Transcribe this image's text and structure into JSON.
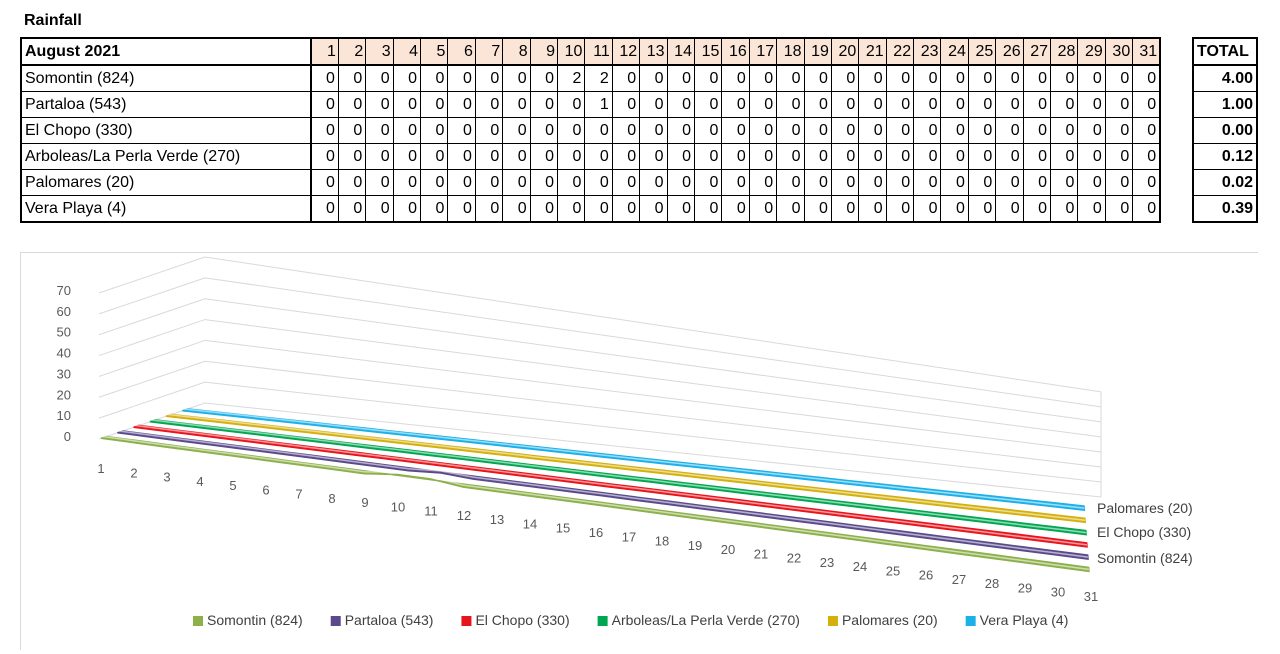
{
  "title": "Rainfall",
  "table": {
    "month_label": "August 2021",
    "total_label": "TOTAL",
    "days": [
      "1",
      "2",
      "3",
      "4",
      "5",
      "6",
      "7",
      "8",
      "9",
      "10",
      "11",
      "12",
      "13",
      "14",
      "15",
      "16",
      "17",
      "18",
      "19",
      "20",
      "21",
      "22",
      "23",
      "24",
      "25",
      "26",
      "27",
      "28",
      "29",
      "30",
      "31"
    ],
    "rows": [
      {
        "station": "Somontin (824)",
        "values": [
          0,
          0,
          0,
          0,
          0,
          0,
          0,
          0,
          0,
          2,
          2,
          0,
          0,
          0,
          0,
          0,
          0,
          0,
          0,
          0,
          0,
          0,
          0,
          0,
          0,
          0,
          0,
          0,
          0,
          0,
          0
        ],
        "total": "4.00"
      },
      {
        "station": "Partaloa (543)",
        "values": [
          0,
          0,
          0,
          0,
          0,
          0,
          0,
          0,
          0,
          0,
          1,
          0,
          0,
          0,
          0,
          0,
          0,
          0,
          0,
          0,
          0,
          0,
          0,
          0,
          0,
          0,
          0,
          0,
          0,
          0,
          0
        ],
        "total": "1.00"
      },
      {
        "station": "El Chopo (330)",
        "values": [
          0,
          0,
          0,
          0,
          0,
          0,
          0,
          0,
          0,
          0,
          0,
          0,
          0,
          0,
          0,
          0,
          0,
          0,
          0,
          0,
          0,
          0,
          0,
          0,
          0,
          0,
          0,
          0,
          0,
          0,
          0
        ],
        "total": "0.00"
      },
      {
        "station": "Arboleas/La Perla Verde (270)",
        "values": [
          0,
          0,
          0,
          0,
          0,
          0,
          0,
          0,
          0,
          0,
          0,
          0,
          0,
          0,
          0,
          0,
          0,
          0,
          0,
          0,
          0,
          0,
          0,
          0,
          0,
          0,
          0,
          0,
          0,
          0,
          0
        ],
        "total": "0.12"
      },
      {
        "station": "Palomares (20)",
        "values": [
          0,
          0,
          0,
          0,
          0,
          0,
          0,
          0,
          0,
          0,
          0,
          0,
          0,
          0,
          0,
          0,
          0,
          0,
          0,
          0,
          0,
          0,
          0,
          0,
          0,
          0,
          0,
          0,
          0,
          0,
          0
        ],
        "total": "0.02"
      },
      {
        "station": "Vera Playa (4)",
        "values": [
          0,
          0,
          0,
          0,
          0,
          0,
          0,
          0,
          0,
          0,
          0,
          0,
          0,
          0,
          0,
          0,
          0,
          0,
          0,
          0,
          0,
          0,
          0,
          0,
          0,
          0,
          0,
          0,
          0,
          0,
          0
        ],
        "total": "0.39"
      }
    ]
  },
  "chart_data": {
    "type": "area",
    "title": "",
    "xlabel": "",
    "ylabel": "",
    "x": [
      1,
      2,
      3,
      4,
      5,
      6,
      7,
      8,
      9,
      10,
      11,
      12,
      13,
      14,
      15,
      16,
      17,
      18,
      19,
      20,
      21,
      22,
      23,
      24,
      25,
      26,
      27,
      28,
      29,
      30,
      31
    ],
    "yticks": [
      0,
      10,
      20,
      30,
      40,
      50,
      60,
      70
    ],
    "ylim": [
      0,
      70
    ],
    "depth_labels": [
      "Somontin (824)",
      "El Chopo (330)",
      "Palomares (20)"
    ],
    "legend_position": "bottom",
    "grid": true,
    "series": [
      {
        "name": "Somontin (824)",
        "color": "#8cb04a",
        "values": [
          0,
          0,
          0,
          0,
          0,
          0,
          0,
          0,
          0,
          2,
          2,
          0,
          0,
          0,
          0,
          0,
          0,
          0,
          0,
          0,
          0,
          0,
          0,
          0,
          0,
          0,
          0,
          0,
          0,
          0,
          0
        ]
      },
      {
        "name": "Partaloa (543)",
        "color": "#5a4a8c",
        "values": [
          0,
          0,
          0,
          0,
          0,
          0,
          0,
          0,
          0,
          0,
          1,
          0,
          0,
          0,
          0,
          0,
          0,
          0,
          0,
          0,
          0,
          0,
          0,
          0,
          0,
          0,
          0,
          0,
          0,
          0,
          0
        ]
      },
      {
        "name": "El Chopo (330)",
        "color": "#e8141c",
        "values": [
          0,
          0,
          0,
          0,
          0,
          0,
          0,
          0,
          0,
          0,
          0,
          0,
          0,
          0,
          0,
          0,
          0,
          0,
          0,
          0,
          0,
          0,
          0,
          0,
          0,
          0,
          0,
          0,
          0,
          0,
          0
        ]
      },
      {
        "name": "Arboleas/La Perla Verde (270)",
        "color": "#00a650",
        "values": [
          0,
          0,
          0,
          0,
          0,
          0,
          0,
          0,
          0,
          0,
          0,
          0,
          0,
          0,
          0,
          0,
          0,
          0,
          0,
          0,
          0,
          0,
          0,
          0,
          0,
          0,
          0,
          0,
          0,
          0,
          0
        ]
      },
      {
        "name": "Palomares (20)",
        "color": "#d4b00c",
        "values": [
          0,
          0,
          0,
          0,
          0,
          0,
          0,
          0,
          0,
          0,
          0,
          0,
          0,
          0,
          0,
          0,
          0,
          0,
          0,
          0,
          0,
          0,
          0,
          0,
          0,
          0,
          0,
          0,
          0,
          0,
          0
        ]
      },
      {
        "name": "Vera Playa (4)",
        "color": "#1ab0e8",
        "values": [
          0,
          0,
          0,
          0,
          0,
          0,
          0,
          0,
          0,
          0,
          0,
          0,
          0,
          0,
          0,
          0,
          0,
          0,
          0,
          0,
          0,
          0,
          0,
          0,
          0,
          0,
          0,
          0,
          0,
          0,
          0
        ]
      }
    ]
  }
}
